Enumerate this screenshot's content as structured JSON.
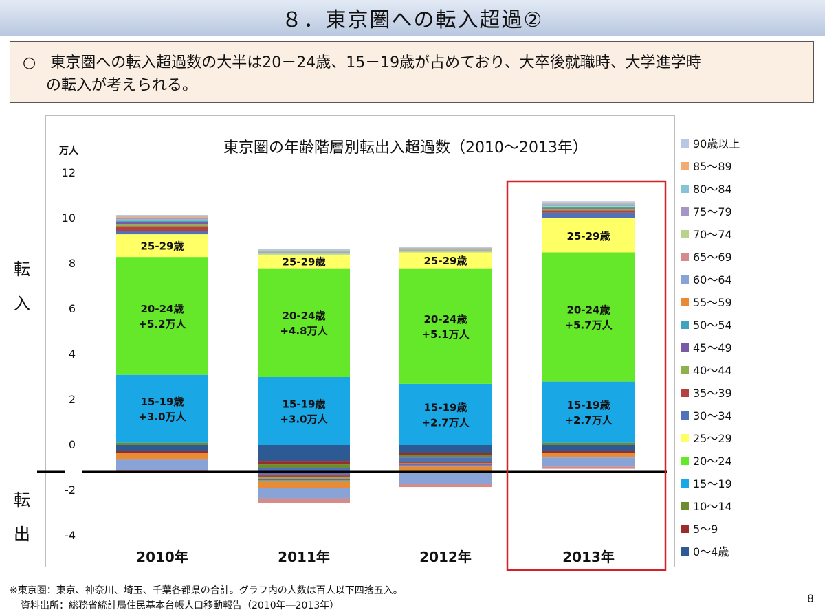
{
  "slide": {
    "title": "８．東京圏への転入超過②",
    "summary_bullet": "○",
    "summary_line1": "東京圏への転入超過数の大半は20－24歳、15－19歳が占めており、大卒後就職時、大学進学時",
    "summary_line2": "の転入が考えられる。",
    "side_in_1": "転",
    "side_in_2": "入",
    "side_out_1": "転",
    "side_out_2": "出",
    "footnote_1": "※東京圏：東京、神奈川、埼玉、千葉各都県の合計。グラフ内の人数は百人以下四捨五入。",
    "footnote_2": "資料出所：総務省統計局住民基本台帳人口移動報告（2010年―2013年）",
    "page_number": "8"
  },
  "chart_data": {
    "type": "bar",
    "stacked": true,
    "title": "東京圏の年齢階層別転出入超過数（2010〜2013年）",
    "ylabel": "万人",
    "ylim": [
      -4,
      12
    ],
    "yticks": [
      -4,
      -2,
      0,
      2,
      4,
      6,
      8,
      10,
      12
    ],
    "grid": false,
    "legend_position": "right",
    "categories": [
      "2010年",
      "2011年",
      "2012年",
      "2013年"
    ],
    "highlighted_category": "2013年",
    "series": [
      {
        "name": "0〜4歳",
        "color": "#2e5a94",
        "values": [
          -0.25,
          -0.7,
          -0.35,
          -0.25
        ]
      },
      {
        "name": "5〜9",
        "color": "#9c2b2b",
        "values": [
          -0.1,
          -0.15,
          -0.1,
          -0.1
        ]
      },
      {
        "name": "10〜14",
        "color": "#6e8b2f",
        "values": [
          0.1,
          -0.15,
          -0.1,
          0.1
        ]
      },
      {
        "name": "15〜19",
        "color": "#1aa7e6",
        "values": [
          3.0,
          3.0,
          2.7,
          2.7
        ]
      },
      {
        "name": "20〜24",
        "color": "#66e82a",
        "values": [
          5.2,
          4.8,
          5.1,
          5.7
        ]
      },
      {
        "name": "25〜29",
        "color": "#ffff66",
        "values": [
          1.0,
          0.6,
          0.7,
          1.5
        ]
      },
      {
        "name": "30〜34",
        "color": "#4f72b8",
        "values": [
          0.15,
          -0.3,
          -0.2,
          0.25
        ]
      },
      {
        "name": "35〜39",
        "color": "#b5403f",
        "values": [
          0.2,
          -0.1,
          -0.05,
          0.1
        ]
      },
      {
        "name": "40〜44",
        "color": "#8fb04a",
        "values": [
          0.1,
          -0.1,
          -0.05,
          0.05
        ]
      },
      {
        "name": "45〜49",
        "color": "#7a5aa6",
        "values": [
          0.1,
          -0.05,
          -0.05,
          0.05
        ]
      },
      {
        "name": "50〜54",
        "color": "#3fa3bf",
        "values": [
          0.05,
          -0.05,
          -0.05,
          0.05
        ]
      },
      {
        "name": "55〜59",
        "color": "#e88b35",
        "values": [
          -0.3,
          -0.3,
          -0.2,
          -0.2
        ]
      },
      {
        "name": "60〜64",
        "color": "#8aa3d6",
        "values": [
          -0.45,
          -0.45,
          -0.55,
          -0.4
        ]
      },
      {
        "name": "65〜69",
        "color": "#d48c8b",
        "values": [
          -0.1,
          -0.2,
          -0.15,
          -0.1
        ]
      },
      {
        "name": "70〜74",
        "color": "#b9d38f",
        "values": [
          0.05,
          0.05,
          0.05,
          0.05
        ]
      },
      {
        "name": "75〜79",
        "color": "#a497c4",
        "values": [
          0.05,
          0.05,
          0.05,
          0.05
        ]
      },
      {
        "name": "80〜84",
        "color": "#84c4d6",
        "values": [
          0.05,
          0.05,
          0.05,
          0.05
        ]
      },
      {
        "name": "85〜89",
        "color": "#f5aa72",
        "values": [
          0.05,
          0.05,
          0.05,
          0.05
        ]
      },
      {
        "name": "90歳以上",
        "color": "#b8c7e6",
        "values": [
          0.05,
          0.05,
          0.05,
          0.05
        ]
      }
    ],
    "annotations": [
      {
        "category": "2010年",
        "series": "25〜29",
        "text": [
          "25-29歳"
        ]
      },
      {
        "category": "2011年",
        "series": "25〜29",
        "text": [
          "25-29歳"
        ]
      },
      {
        "category": "2012年",
        "series": "25〜29",
        "text": [
          "25-29歳"
        ]
      },
      {
        "category": "2013年",
        "series": "25〜29",
        "text": [
          "25-29歳"
        ]
      },
      {
        "category": "2010年",
        "series": "20〜24",
        "text": [
          "20-24歳",
          "+5.2万人"
        ]
      },
      {
        "category": "2011年",
        "series": "20〜24",
        "text": [
          "20-24歳",
          "+4.8万人"
        ]
      },
      {
        "category": "2012年",
        "series": "20〜24",
        "text": [
          "20-24歳",
          "+5.1万人"
        ]
      },
      {
        "category": "2013年",
        "series": "20〜24",
        "text": [
          "20-24歳",
          "+5.7万人"
        ]
      },
      {
        "category": "2010年",
        "series": "15〜19",
        "text": [
          "15-19歳",
          "+3.0万人"
        ]
      },
      {
        "category": "2011年",
        "series": "15〜19",
        "text": [
          "15-19歳",
          "+3.0万人"
        ]
      },
      {
        "category": "2012年",
        "series": "15〜19",
        "text": [
          "15-19歳",
          "+2.7万人"
        ]
      },
      {
        "category": "2013年",
        "series": "15〜19",
        "text": [
          "15-19歳",
          "+2.7万人"
        ]
      }
    ]
  }
}
